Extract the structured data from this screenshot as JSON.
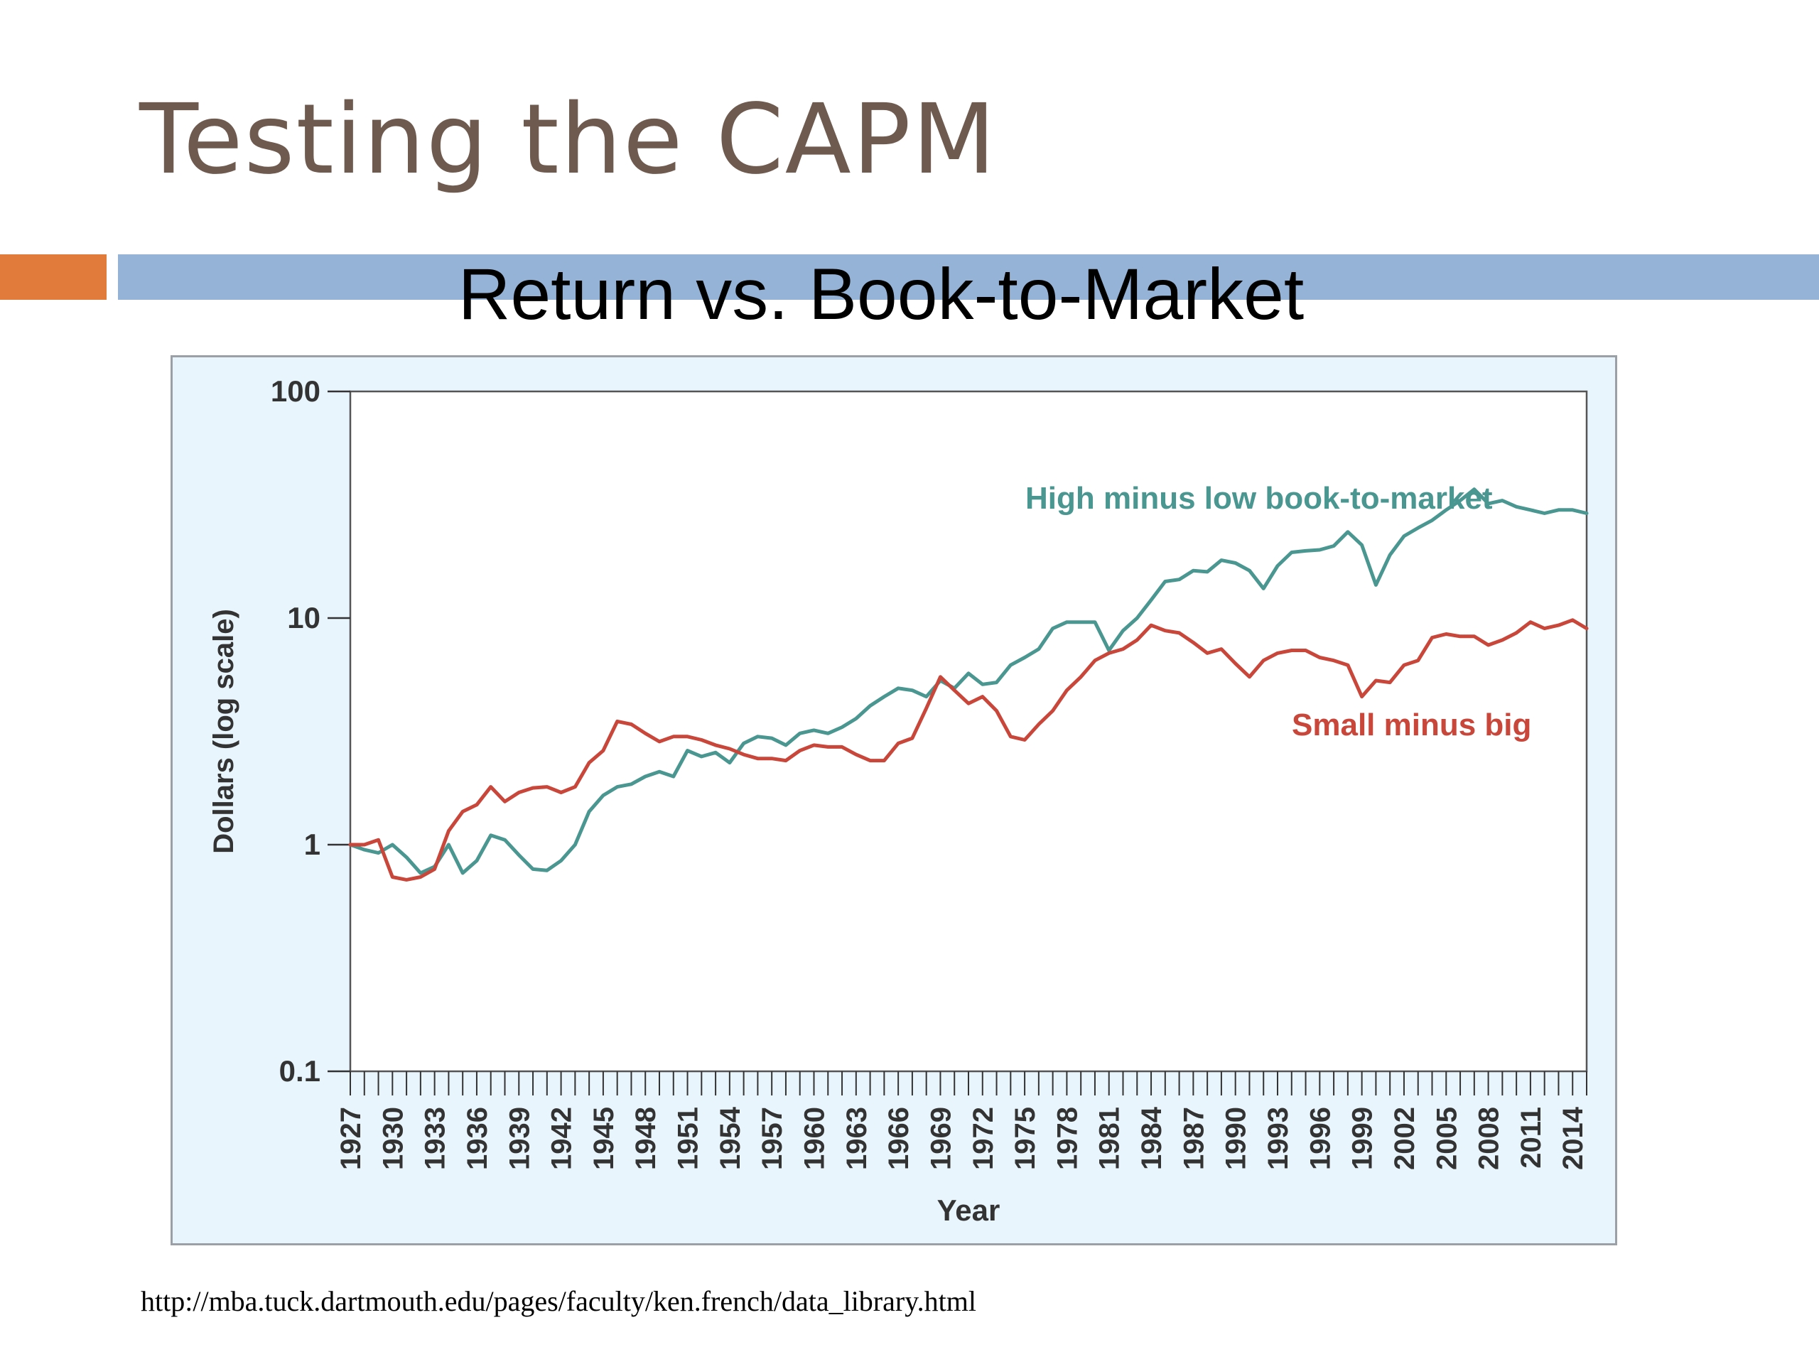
{
  "slide": {
    "title": "Testing the CAPM",
    "source_url": "http://mba.tuck.dartmouth.edu/pages/faculty/ken.french/data_library.html",
    "colors": {
      "title": "#6e5a4e",
      "accent_bar": "#e07b3c",
      "main_bar": "#95b3d7",
      "panel_bg": "#e8f5fd"
    }
  },
  "chart_data": {
    "type": "line",
    "title": "Return vs. Book-to-Market",
    "xlabel": "Year",
    "ylabel": "Dollars (log scale)",
    "yscale": "log",
    "ylim": [
      0.1,
      100
    ],
    "xlim": [
      1927,
      2015
    ],
    "yticks": [
      {
        "value": 100,
        "label": "100"
      },
      {
        "value": 10,
        "label": "10"
      },
      {
        "value": 1,
        "label": "1"
      },
      {
        "value": 0.1,
        "label": "0.1"
      }
    ],
    "xtick_labels": [
      "1927",
      "1930",
      "1933",
      "1936",
      "1939",
      "1942",
      "1945",
      "1948",
      "1951",
      "1954",
      "1957",
      "1960",
      "1963",
      "1966",
      "1969",
      "1972",
      "1975",
      "1978",
      "1981",
      "1984",
      "1987",
      "1990",
      "1993",
      "1996",
      "1999",
      "2002",
      "2005",
      "2008",
      "2011",
      "2014"
    ],
    "grid": false,
    "series": [
      {
        "name": "High minus low book-to-market",
        "color": "#4a9690",
        "x": [
          1927,
          1928,
          1929,
          1930,
          1931,
          1932,
          1933,
          1934,
          1935,
          1936,
          1937,
          1938,
          1939,
          1940,
          1941,
          1942,
          1943,
          1944,
          1945,
          1946,
          1947,
          1948,
          1949,
          1950,
          1951,
          1952,
          1953,
          1954,
          1955,
          1956,
          1957,
          1958,
          1959,
          1960,
          1961,
          1962,
          1963,
          1964,
          1965,
          1966,
          1967,
          1968,
          1969,
          1970,
          1971,
          1972,
          1973,
          1974,
          1975,
          1976,
          1977,
          1978,
          1979,
          1980,
          1981,
          1982,
          1983,
          1984,
          1985,
          1986,
          1987,
          1988,
          1989,
          1990,
          1991,
          1992,
          1993,
          1994,
          1995,
          1996,
          1997,
          1998,
          1999,
          2000,
          2001,
          2002,
          2003,
          2004,
          2005,
          2006,
          2007,
          2008,
          2009,
          2010,
          2011,
          2012,
          2013,
          2014,
          2015
        ],
        "values": [
          1.0,
          0.95,
          0.92,
          1.0,
          0.88,
          0.75,
          0.8,
          1.0,
          0.75,
          0.85,
          1.1,
          1.05,
          0.9,
          0.78,
          0.77,
          0.85,
          1.0,
          1.4,
          1.65,
          1.8,
          1.85,
          2.0,
          2.1,
          2.0,
          2.6,
          2.45,
          2.55,
          2.3,
          2.8,
          3.0,
          2.95,
          2.75,
          3.1,
          3.2,
          3.1,
          3.3,
          3.6,
          4.1,
          4.5,
          4.9,
          4.8,
          4.5,
          5.3,
          4.9,
          5.7,
          5.1,
          5.2,
          6.2,
          6.7,
          7.3,
          9.0,
          9.6,
          9.6,
          9.6,
          7.2,
          8.8,
          10.0,
          12.0,
          14.5,
          14.8,
          16.2,
          16.0,
          18.0,
          17.5,
          16.2,
          13.5,
          17.0,
          19.5,
          19.8,
          20.0,
          20.8,
          24.0,
          21.0,
          14.0,
          19.0,
          23.0,
          25.0,
          27.0,
          30.0,
          33.0,
          37.0,
          32.0,
          33.0,
          31.0,
          30.0,
          29.0,
          30.0,
          30.0,
          29.0
        ]
      },
      {
        "name": "Small minus big",
        "color": "#c8473a",
        "x": [
          1927,
          1928,
          1929,
          1930,
          1931,
          1932,
          1933,
          1934,
          1935,
          1936,
          1937,
          1938,
          1939,
          1940,
          1941,
          1942,
          1943,
          1944,
          1945,
          1946,
          1947,
          1948,
          1949,
          1950,
          1951,
          1952,
          1953,
          1954,
          1955,
          1956,
          1957,
          1958,
          1959,
          1960,
          1961,
          1962,
          1963,
          1964,
          1965,
          1966,
          1967,
          1968,
          1969,
          1970,
          1971,
          1972,
          1973,
          1974,
          1975,
          1976,
          1977,
          1978,
          1979,
          1980,
          1981,
          1982,
          1983,
          1984,
          1985,
          1986,
          1987,
          1988,
          1989,
          1990,
          1991,
          1992,
          1993,
          1994,
          1995,
          1996,
          1997,
          1998,
          1999,
          2000,
          2001,
          2002,
          2003,
          2004,
          2005,
          2006,
          2007,
          2008,
          2009,
          2010,
          2011,
          2012,
          2013,
          2014,
          2015
        ],
        "values": [
          1.0,
          1.0,
          1.05,
          0.72,
          0.7,
          0.72,
          0.78,
          1.15,
          1.4,
          1.5,
          1.8,
          1.55,
          1.7,
          1.78,
          1.8,
          1.7,
          1.8,
          2.3,
          2.6,
          3.5,
          3.4,
          3.1,
          2.85,
          3.0,
          3.0,
          2.9,
          2.75,
          2.65,
          2.5,
          2.4,
          2.4,
          2.35,
          2.6,
          2.75,
          2.7,
          2.7,
          2.5,
          2.35,
          2.35,
          2.8,
          2.95,
          4.0,
          5.5,
          4.8,
          4.2,
          4.5,
          3.9,
          3.0,
          2.9,
          3.4,
          3.9,
          4.8,
          5.5,
          6.5,
          7.0,
          7.3,
          8.0,
          9.3,
          8.8,
          8.6,
          7.8,
          7.0,
          7.3,
          6.3,
          5.5,
          6.5,
          7.0,
          7.2,
          7.2,
          6.7,
          6.5,
          6.2,
          4.5,
          5.3,
          5.2,
          6.2,
          6.5,
          8.2,
          8.5,
          8.3,
          8.3,
          7.6,
          8.0,
          8.6,
          9.6,
          9.0,
          9.3,
          9.8,
          9.0
        ]
      }
    ]
  }
}
